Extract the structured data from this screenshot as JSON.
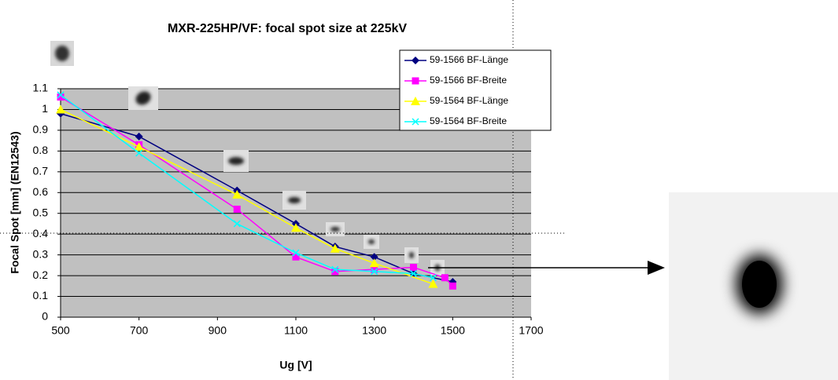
{
  "chart_data": {
    "type": "line",
    "title": "MXR-225HP/VF: focal spot size at 225kV",
    "x_label": "Ug [V]",
    "y_label": "Focal Spot  [mm] (EN12543)",
    "xlim": [
      500,
      1700
    ],
    "xticks": [
      500,
      700,
      900,
      1100,
      1300,
      1500,
      1700
    ],
    "ylim": [
      0,
      1.1
    ],
    "yticks": [
      0,
      0.1,
      0.2,
      0.3,
      0.4,
      0.5,
      0.6,
      0.7,
      0.8,
      0.9,
      1,
      1.1
    ],
    "grid": true,
    "legend": "upper right",
    "series": [
      {
        "name": "59-1566 BF-Länge",
        "color": "#000080",
        "marker": "diamond",
        "x": [
          500,
          700,
          950,
          1100,
          1200,
          1300,
          1400,
          1500
        ],
        "values": [
          0.98,
          0.87,
          0.61,
          0.45,
          0.34,
          0.29,
          0.21,
          0.17
        ]
      },
      {
        "name": "59-1566 BF-Breite",
        "color": "#ff00ff",
        "marker": "square",
        "x": [
          500,
          700,
          950,
          1100,
          1200,
          1300,
          1400,
          1480,
          1500
        ],
        "values": [
          1.06,
          0.83,
          0.52,
          0.29,
          0.22,
          0.23,
          0.24,
          0.19,
          0.15
        ]
      },
      {
        "name": "59-1564 BF-Länge",
        "color": "#ffff00",
        "marker": "triangle",
        "x": [
          500,
          700,
          950,
          1100,
          1200,
          1300,
          1450
        ],
        "values": [
          1.0,
          0.82,
          0.59,
          0.43,
          0.33,
          0.26,
          0.16
        ]
      },
      {
        "name": "59-1564 BF-Breite",
        "color": "#00ffff",
        "marker": "x",
        "x": [
          500,
          700,
          950,
          1100,
          1200,
          1300,
          1400,
          1450
        ],
        "values": [
          1.07,
          0.79,
          0.45,
          0.31,
          0.23,
          0.22,
          0.21,
          0.19
        ]
      }
    ]
  }
}
